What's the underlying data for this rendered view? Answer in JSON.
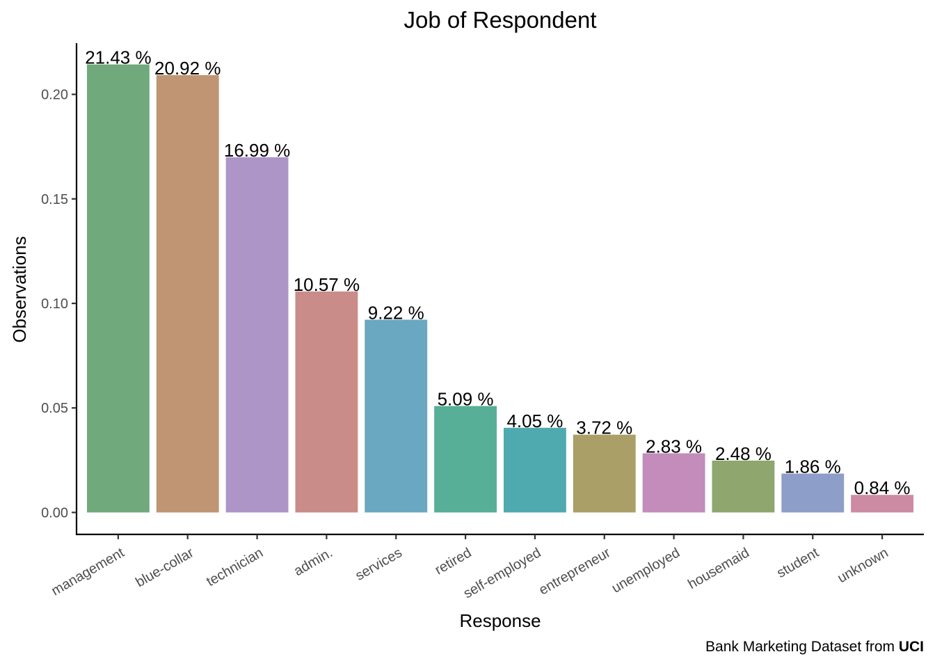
{
  "chart_data": {
    "type": "bar",
    "title": "Job of Respondent",
    "xlabel": "Response",
    "ylabel": "Observations",
    "ylim": [
      -0.0105,
      0.2245
    ],
    "yticks": [
      0.0,
      0.05,
      0.1,
      0.15,
      0.2
    ],
    "ytick_labels": [
      "0.00",
      "0.05",
      "0.10",
      "0.15",
      "0.20"
    ],
    "grid": false,
    "legend": "none",
    "categories": [
      "management",
      "blue-collar",
      "technician",
      "admin.",
      "services",
      "retired",
      "self-employed",
      "entrepreneur",
      "unemployed",
      "housemaid",
      "student",
      "unknown"
    ],
    "values": [
      0.2143,
      0.2092,
      0.1699,
      0.1057,
      0.0922,
      0.0509,
      0.0405,
      0.0372,
      0.0283,
      0.0248,
      0.0186,
      0.0084
    ],
    "labels": [
      "21.43 %",
      "20.92 %",
      "16.99 %",
      "10.57 %",
      "9.22 %",
      "5.09 %",
      "4.05 %",
      "3.72 %",
      "2.83 %",
      "2.48 %",
      "1.86 %",
      "0.84 %"
    ],
    "colors": [
      "#70aa7c",
      "#bf9573",
      "#ad95c8",
      "#ca8c89",
      "#69a8c0",
      "#56af96",
      "#4faab0",
      "#aa9f66",
      "#c38cbb",
      "#8fa66f",
      "#8d9ec9",
      "#cc8ba3"
    ]
  },
  "caption": {
    "prefix": "Bank Marketing Dataset from ",
    "bold": "UCI"
  }
}
